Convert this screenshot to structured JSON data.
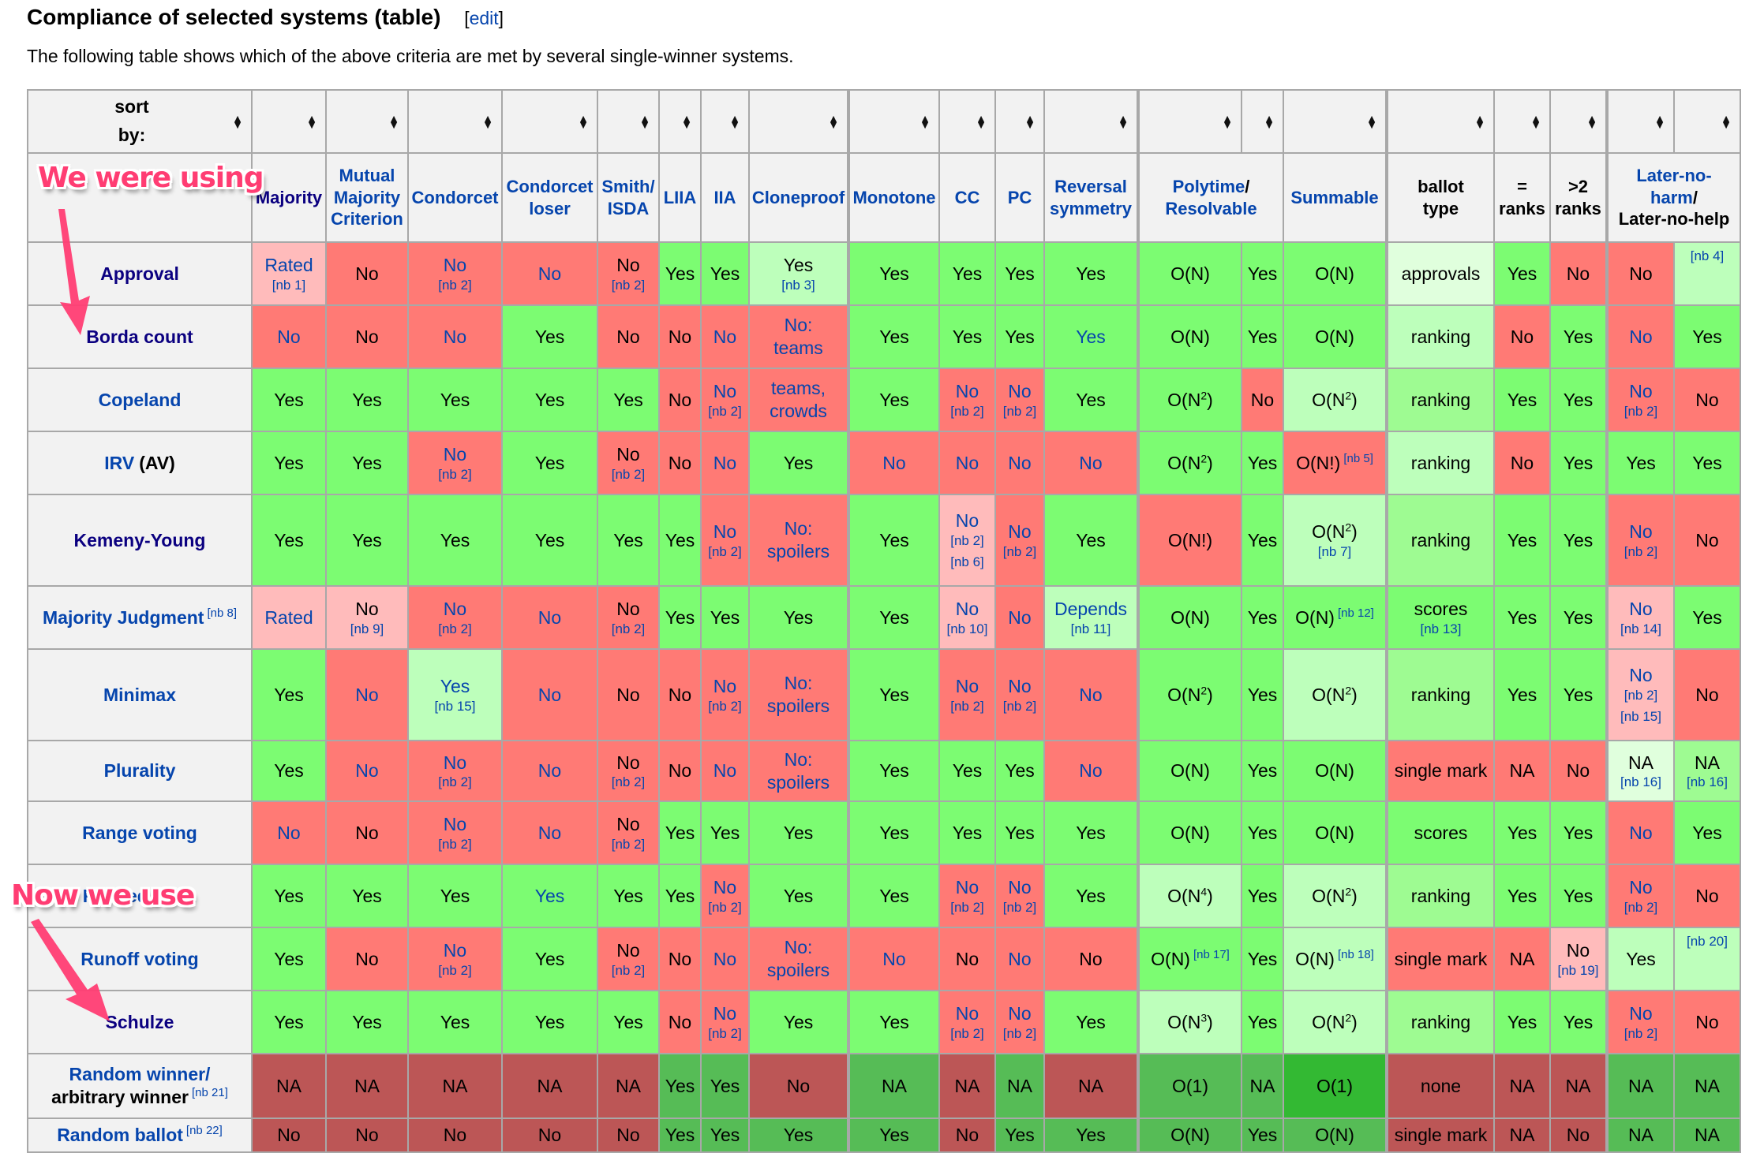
{
  "header": {
    "title": "Compliance of selected systems (table)",
    "edit_open": "[",
    "edit_label": "edit",
    "edit_close": "]",
    "intro": "The following table shows which of the above criteria are met by several single-winner systems."
  },
  "sort": {
    "label_line1": "sort",
    "label_line2": "by:",
    "icon": "sort-updown-icon"
  },
  "columns": [
    {
      "label": "Majority"
    },
    {
      "label": "Mutual Majority Criterion"
    },
    {
      "label": "Condorcet"
    },
    {
      "label": "Condorcet loser"
    },
    {
      "label": "Smith/ ISDA"
    },
    {
      "label": "LIIA"
    },
    {
      "label": "IIA"
    },
    {
      "label": "Cloneproof"
    },
    {
      "label": "Monotone"
    },
    {
      "label": "CC"
    },
    {
      "label": "PC"
    },
    {
      "label": "Reversal symmetry"
    },
    {
      "label": "Polytime/ Resolvable"
    },
    {
      "label": "Summable"
    },
    {
      "label": "ballot type"
    },
    {
      "label": "= ranks"
    },
    {
      "label": ">2 ranks"
    },
    {
      "label": "Later-no-harm/ Later-no-help"
    }
  ],
  "annotations": {
    "top": "We were using",
    "bottom": "Now we use",
    "color": "#ff3d73"
  },
  "colors": {
    "yes": "#7cfc72",
    "no": "#ff7a75",
    "pink": "#ffbbbb",
    "light_green": "#bdffbb",
    "pale_green": "#e0ffdd",
    "mid_green": "#9efb92",
    "dark_red": "#bc5656",
    "dark_green": "#56bc56",
    "bright_green": "#33b933",
    "link": "#0645ad"
  },
  "rows": [
    {
      "name": "Approval",
      "cells": [
        {
          "t": "Rated",
          "nb": "[nb 1]"
        },
        {
          "t": "No"
        },
        {
          "t": "No",
          "nb": "[nb 2]"
        },
        {
          "t": "No"
        },
        {
          "t": "No",
          "nb": "[nb 2]"
        },
        {
          "t": "Yes"
        },
        {
          "t": "Yes"
        },
        {
          "t": "Yes",
          "nb": "[nb 3]"
        },
        {
          "t": "Yes"
        },
        {
          "t": "Yes"
        },
        {
          "t": "Yes"
        },
        {
          "t": "Yes"
        },
        {
          "t": "O(N)"
        },
        {
          "t": "Yes"
        },
        {
          "t": "O(N)"
        },
        {
          "t": "approvals"
        },
        {
          "t": "Yes"
        },
        {
          "t": "No"
        },
        {
          "t": "No"
        },
        {
          "t": "[nb 4]"
        }
      ]
    },
    {
      "name": "Borda count",
      "cells": [
        {
          "t": "No"
        },
        {
          "t": "No"
        },
        {
          "t": "No"
        },
        {
          "t": "Yes"
        },
        {
          "t": "No"
        },
        {
          "t": "No"
        },
        {
          "t": "No"
        },
        {
          "t": "No:",
          "t2": "teams"
        },
        {
          "t": "Yes"
        },
        {
          "t": "Yes"
        },
        {
          "t": "Yes"
        },
        {
          "t": "Yes"
        },
        {
          "t": "O(N)"
        },
        {
          "t": "Yes"
        },
        {
          "t": "O(N)"
        },
        {
          "t": "ranking"
        },
        {
          "t": "No"
        },
        {
          "t": "Yes"
        },
        {
          "t": "No"
        },
        {
          "t": "Yes"
        }
      ]
    },
    {
      "name": "Copeland",
      "cells": [
        {
          "t": "Yes"
        },
        {
          "t": "Yes"
        },
        {
          "t": "Yes"
        },
        {
          "t": "Yes"
        },
        {
          "t": "Yes"
        },
        {
          "t": "No"
        },
        {
          "t": "No",
          "nb": "[nb 2]"
        },
        {
          "t": "teams,",
          "t2": "crowds"
        },
        {
          "t": "Yes"
        },
        {
          "t": "No",
          "nb": "[nb 2]"
        },
        {
          "t": "No",
          "nb": "[nb 2]"
        },
        {
          "t": "Yes"
        },
        {
          "t": "O(N",
          "sup": "2",
          "t3": ")"
        },
        {
          "t": "No"
        },
        {
          "t": "O(N",
          "sup": "2",
          "t3": ")"
        },
        {
          "t": "ranking"
        },
        {
          "t": "Yes"
        },
        {
          "t": "Yes"
        },
        {
          "t": "No",
          "nb": "[nb 2]"
        },
        {
          "t": "No"
        }
      ]
    },
    {
      "name": "IRV",
      "name_extra": "(AV)",
      "cells": [
        {
          "t": "Yes"
        },
        {
          "t": "Yes"
        },
        {
          "t": "No",
          "nb": "[nb 2]"
        },
        {
          "t": "Yes"
        },
        {
          "t": "No",
          "nb": "[nb 2]"
        },
        {
          "t": "No"
        },
        {
          "t": "No"
        },
        {
          "t": "Yes"
        },
        {
          "t": "No"
        },
        {
          "t": "No"
        },
        {
          "t": "No"
        },
        {
          "t": "No"
        },
        {
          "t": "O(N",
          "sup": "2",
          "t3": ")"
        },
        {
          "t": "Yes"
        },
        {
          "t": "O(N!)",
          "note": "[nb 5]"
        },
        {
          "t": "ranking"
        },
        {
          "t": "No"
        },
        {
          "t": "Yes"
        },
        {
          "t": "Yes"
        },
        {
          "t": "Yes"
        }
      ]
    },
    {
      "name": "Kemeny-Young",
      "cells": [
        {
          "t": "Yes"
        },
        {
          "t": "Yes"
        },
        {
          "t": "Yes"
        },
        {
          "t": "Yes"
        },
        {
          "t": "Yes"
        },
        {
          "t": "Yes"
        },
        {
          "t": "No",
          "nb": "[nb 2]"
        },
        {
          "t": "No:",
          "t2": "spoilers"
        },
        {
          "t": "Yes"
        },
        {
          "t": "No",
          "nb": "[nb 2]",
          "nb2": "[nb 6]"
        },
        {
          "t": "No",
          "nb": "[nb 2]"
        },
        {
          "t": "Yes"
        },
        {
          "t": "O(N!)"
        },
        {
          "t": "Yes"
        },
        {
          "t": "O(N",
          "sup": "2",
          "t3": ")",
          "nb": "[nb 7]"
        },
        {
          "t": "ranking"
        },
        {
          "t": "Yes"
        },
        {
          "t": "Yes"
        },
        {
          "t": "No",
          "nb": "[nb 2]"
        },
        {
          "t": "No"
        }
      ]
    },
    {
      "name": "Majority Judgment",
      "name_note": "[nb 8]",
      "cells": [
        {
          "t": "Rated"
        },
        {
          "t": "No",
          "nb": "[nb 9]"
        },
        {
          "t": "No",
          "nb": "[nb 2]"
        },
        {
          "t": "No"
        },
        {
          "t": "No",
          "nb": "[nb 2]"
        },
        {
          "t": "Yes"
        },
        {
          "t": "Yes"
        },
        {
          "t": "Yes"
        },
        {
          "t": "Yes"
        },
        {
          "t": "No",
          "nb": "[nb 10]"
        },
        {
          "t": "No"
        },
        {
          "t": "Depends",
          "nb": "[nb 11]"
        },
        {
          "t": "O(N)"
        },
        {
          "t": "Yes"
        },
        {
          "t": "O(N)",
          "note": "[nb 12]"
        },
        {
          "t": "scores",
          "nb": "[nb 13]"
        },
        {
          "t": "Yes"
        },
        {
          "t": "Yes"
        },
        {
          "t": "No",
          "nb": "[nb 14]"
        },
        {
          "t": "Yes"
        }
      ]
    },
    {
      "name": "Minimax",
      "cells": [
        {
          "t": "Yes"
        },
        {
          "t": "No"
        },
        {
          "t": "Yes",
          "nb": "[nb 15]"
        },
        {
          "t": "No"
        },
        {
          "t": "No"
        },
        {
          "t": "No"
        },
        {
          "t": "No",
          "nb": "[nb 2]"
        },
        {
          "t": "No:",
          "t2": "spoilers"
        },
        {
          "t": "Yes"
        },
        {
          "t": "No",
          "nb": "[nb 2]"
        },
        {
          "t": "No",
          "nb": "[nb 2]"
        },
        {
          "t": "No"
        },
        {
          "t": "O(N",
          "sup": "2",
          "t3": ")"
        },
        {
          "t": "Yes"
        },
        {
          "t": "O(N",
          "sup": "2",
          "t3": ")"
        },
        {
          "t": "ranking"
        },
        {
          "t": "Yes"
        },
        {
          "t": "Yes"
        },
        {
          "t": "No",
          "nb": "[nb 2]",
          "nb2": "[nb 15]"
        },
        {
          "t": "No"
        }
      ]
    },
    {
      "name": "Plurality",
      "cells": [
        {
          "t": "Yes"
        },
        {
          "t": "No"
        },
        {
          "t": "No",
          "nb": "[nb 2]"
        },
        {
          "t": "No"
        },
        {
          "t": "No",
          "nb": "[nb 2]"
        },
        {
          "t": "No"
        },
        {
          "t": "No"
        },
        {
          "t": "No:",
          "t2": "spoilers"
        },
        {
          "t": "Yes"
        },
        {
          "t": "Yes"
        },
        {
          "t": "Yes"
        },
        {
          "t": "No"
        },
        {
          "t": "O(N)"
        },
        {
          "t": "Yes"
        },
        {
          "t": "O(N)"
        },
        {
          "t": "single mark"
        },
        {
          "t": "NA"
        },
        {
          "t": "No"
        },
        {
          "t": "NA",
          "nb": "[nb 16]"
        },
        {
          "t": "NA",
          "nb": "[nb 16]"
        }
      ]
    },
    {
      "name": "Range voting",
      "cells": [
        {
          "t": "No"
        },
        {
          "t": "No"
        },
        {
          "t": "No",
          "nb": "[nb 2]"
        },
        {
          "t": "No"
        },
        {
          "t": "No",
          "nb": "[nb 2]"
        },
        {
          "t": "Yes"
        },
        {
          "t": "Yes"
        },
        {
          "t": "Yes"
        },
        {
          "t": "Yes"
        },
        {
          "t": "Yes"
        },
        {
          "t": "Yes"
        },
        {
          "t": "Yes"
        },
        {
          "t": "O(N)"
        },
        {
          "t": "Yes"
        },
        {
          "t": "O(N)"
        },
        {
          "t": "scores"
        },
        {
          "t": "Yes"
        },
        {
          "t": "Yes"
        },
        {
          "t": "No"
        },
        {
          "t": "Yes"
        }
      ]
    },
    {
      "name": "Ranked pairs",
      "cells": [
        {
          "t": "Yes"
        },
        {
          "t": "Yes"
        },
        {
          "t": "Yes"
        },
        {
          "t": "Yes"
        },
        {
          "t": "Yes"
        },
        {
          "t": "Yes"
        },
        {
          "t": "No",
          "nb": "[nb 2]"
        },
        {
          "t": "Yes"
        },
        {
          "t": "Yes"
        },
        {
          "t": "No",
          "nb": "[nb 2]"
        },
        {
          "t": "No",
          "nb": "[nb 2]"
        },
        {
          "t": "Yes"
        },
        {
          "t": "O(N",
          "sup": "4",
          "t3": ")"
        },
        {
          "t": "Yes"
        },
        {
          "t": "O(N",
          "sup": "2",
          "t3": ")"
        },
        {
          "t": "ranking"
        },
        {
          "t": "Yes"
        },
        {
          "t": "Yes"
        },
        {
          "t": "No",
          "nb": "[nb 2]"
        },
        {
          "t": "No"
        }
      ]
    },
    {
      "name": "Runoff voting",
      "cells": [
        {
          "t": "Yes"
        },
        {
          "t": "No"
        },
        {
          "t": "No",
          "nb": "[nb 2]"
        },
        {
          "t": "Yes"
        },
        {
          "t": "No",
          "nb": "[nb 2]"
        },
        {
          "t": "No"
        },
        {
          "t": "No"
        },
        {
          "t": "No:",
          "t2": "spoilers"
        },
        {
          "t": "No"
        },
        {
          "t": "No"
        },
        {
          "t": "No"
        },
        {
          "t": "No"
        },
        {
          "t": "O(N)",
          "note": "[nb 17]"
        },
        {
          "t": "Yes"
        },
        {
          "t": "O(N)",
          "note": "[nb 18]"
        },
        {
          "t": "single mark"
        },
        {
          "t": "NA"
        },
        {
          "t": "No",
          "nb": "[nb 19]"
        },
        {
          "t": "Yes"
        },
        {
          "t": "[nb 20]"
        }
      ]
    },
    {
      "name": "Schulze",
      "cells": [
        {
          "t": "Yes"
        },
        {
          "t": "Yes"
        },
        {
          "t": "Yes"
        },
        {
          "t": "Yes"
        },
        {
          "t": "Yes"
        },
        {
          "t": "No"
        },
        {
          "t": "No",
          "nb": "[nb 2]"
        },
        {
          "t": "Yes"
        },
        {
          "t": "Yes"
        },
        {
          "t": "No",
          "nb": "[nb 2]"
        },
        {
          "t": "No",
          "nb": "[nb 2]"
        },
        {
          "t": "Yes"
        },
        {
          "t": "O(N",
          "sup": "3",
          "t3": ")"
        },
        {
          "t": "Yes"
        },
        {
          "t": "O(N",
          "sup": "2",
          "t3": ")"
        },
        {
          "t": "ranking"
        },
        {
          "t": "Yes"
        },
        {
          "t": "Yes"
        },
        {
          "t": "No",
          "nb": "[nb 2]"
        },
        {
          "t": "No"
        }
      ]
    },
    {
      "name": "Random winner/",
      "name_line2": "arbitrary winner",
      "name_note": "[nb 21]",
      "cells": [
        {
          "t": "NA"
        },
        {
          "t": "NA"
        },
        {
          "t": "NA"
        },
        {
          "t": "NA"
        },
        {
          "t": "NA"
        },
        {
          "t": "Yes"
        },
        {
          "t": "Yes"
        },
        {
          "t": "No"
        },
        {
          "t": "NA"
        },
        {
          "t": "NA"
        },
        {
          "t": "NA"
        },
        {
          "t": "NA"
        },
        {
          "t": "O(1)"
        },
        {
          "t": "NA"
        },
        {
          "t": "O(1)"
        },
        {
          "t": "none"
        },
        {
          "t": "NA"
        },
        {
          "t": "NA"
        },
        {
          "t": "NA"
        },
        {
          "t": "NA"
        }
      ]
    },
    {
      "name": "Random ballot",
      "name_note": "[nb 22]",
      "cells": [
        {
          "t": "No"
        },
        {
          "t": "No"
        },
        {
          "t": "No"
        },
        {
          "t": "No"
        },
        {
          "t": "No"
        },
        {
          "t": "Yes"
        },
        {
          "t": "Yes"
        },
        {
          "t": "Yes"
        },
        {
          "t": "Yes"
        },
        {
          "t": "No"
        },
        {
          "t": "Yes"
        },
        {
          "t": "Yes"
        },
        {
          "t": "O(N)"
        },
        {
          "t": "Yes"
        },
        {
          "t": "O(N)"
        },
        {
          "t": "single mark"
        },
        {
          "t": "NA"
        },
        {
          "t": "No"
        },
        {
          "t": "NA"
        },
        {
          "t": "NA"
        }
      ]
    }
  ]
}
